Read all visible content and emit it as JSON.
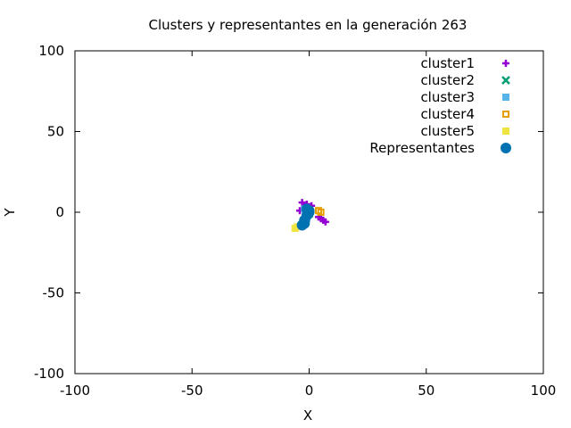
{
  "chart_data": {
    "type": "scatter",
    "title": "Clusters y representantes en la generación 263",
    "xlabel": "X",
    "ylabel": "Y",
    "xlim": [
      -100,
      100
    ],
    "ylim": [
      -100,
      100
    ],
    "xticks": [
      -100,
      -50,
      0,
      50,
      100
    ],
    "yticks": [
      -100,
      -50,
      0,
      50,
      100
    ],
    "xtick_labels": [
      "-100",
      "-50",
      "0",
      "50",
      "100"
    ],
    "ytick_labels": [
      "-100",
      "-50",
      "0",
      "50",
      "100"
    ],
    "grid": false,
    "legend_position": "top-right",
    "series": [
      {
        "name": "cluster1",
        "marker": "plus",
        "color": "#9400d3",
        "points": [
          [
            -3,
            6
          ],
          [
            -4,
            1
          ],
          [
            -2,
            3
          ],
          [
            4,
            -3
          ],
          [
            5,
            -4
          ],
          [
            7,
            -6
          ],
          [
            6,
            -5
          ],
          [
            -1,
            5
          ],
          [
            1,
            4
          ]
        ]
      },
      {
        "name": "cluster2",
        "marker": "cross",
        "color": "#009e73",
        "points": [
          [
            -1,
            0
          ],
          [
            0,
            -1
          ]
        ]
      },
      {
        "name": "cluster3",
        "marker": "square",
        "color": "#56b4e9",
        "points": [
          [
            -2,
            2
          ],
          [
            -1,
            -2
          ],
          [
            0,
            1
          ],
          [
            -1,
            -4
          ]
        ]
      },
      {
        "name": "cluster4",
        "marker": "open-square",
        "color": "#e69f00",
        "points": [
          [
            4,
            1
          ],
          [
            5,
            0
          ]
        ]
      },
      {
        "name": "cluster5",
        "marker": "square",
        "color": "#f0e442",
        "points": [
          [
            -6,
            -10
          ],
          [
            -5,
            -9
          ]
        ]
      },
      {
        "name": "Representantes",
        "marker": "circle",
        "color": "#0072b2",
        "points": [
          [
            -1,
            2
          ],
          [
            0,
            1
          ],
          [
            -1,
            -2
          ],
          [
            -2,
            -5
          ],
          [
            -3,
            -8
          ],
          [
            -2,
            -7
          ],
          [
            0,
            0
          ]
        ]
      }
    ]
  }
}
